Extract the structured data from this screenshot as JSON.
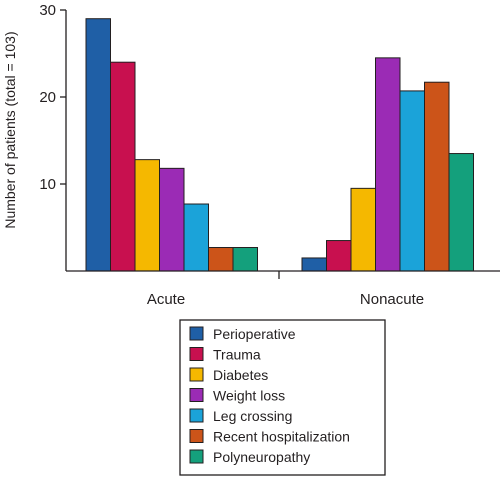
{
  "chart_data": {
    "type": "bar",
    "ylabel": "Number of patients (total = 103)",
    "xlabel": "",
    "ylim": [
      0,
      30
    ],
    "yticks": [
      10,
      20,
      30
    ],
    "grid": false,
    "legend_position": "bottom-center",
    "categories": [
      "Acute",
      "Nonacute"
    ],
    "series": [
      {
        "name": "Perioperative",
        "color": "#1f5fa6",
        "values": [
          29,
          1.5
        ]
      },
      {
        "name": "Trauma",
        "color": "#c8104f",
        "values": [
          24,
          3.5
        ]
      },
      {
        "name": "Diabetes",
        "color": "#f5b800",
        "values": [
          12.8,
          9.5
        ]
      },
      {
        "name": "Weight loss",
        "color": "#9b2bb5",
        "values": [
          11.8,
          24.5
        ]
      },
      {
        "name": "Leg crossing",
        "color": "#1ba3d9",
        "values": [
          7.7,
          20.7
        ]
      },
      {
        "name": "Recent hospitalization",
        "color": "#cc5419",
        "values": [
          2.7,
          21.7
        ]
      },
      {
        "name": "Polyneuropathy",
        "color": "#14a07c",
        "values": [
          2.7,
          13.5
        ]
      }
    ]
  }
}
